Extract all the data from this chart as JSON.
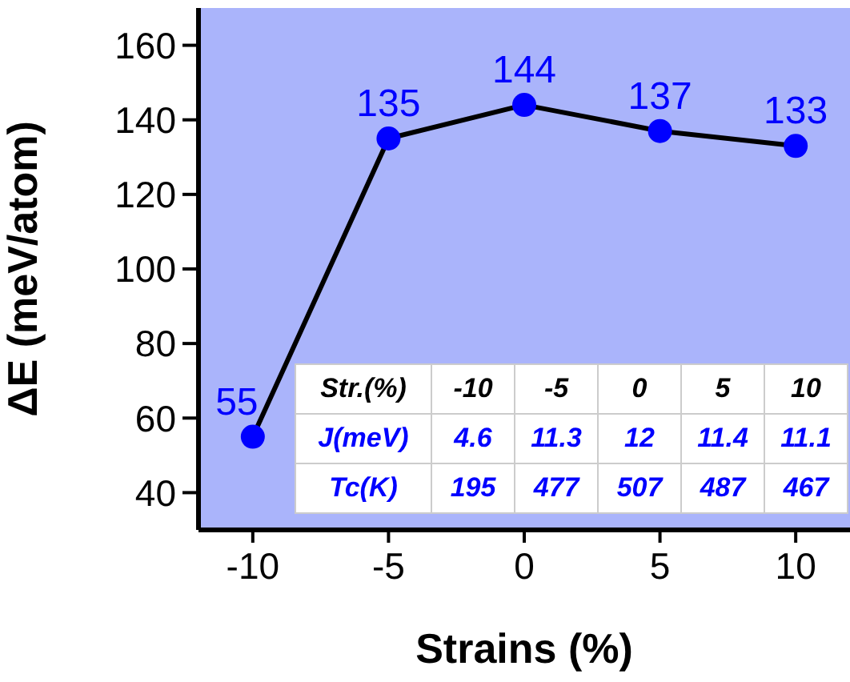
{
  "chart_data": {
    "type": "line",
    "xlabel": "Strains (%)",
    "ylabel": "ΔE (meV/atom)",
    "x": [
      -10,
      -5,
      0,
      5,
      10
    ],
    "series": [
      {
        "color": "#000000",
        "colors": [
          "#0000ff",
          "#0000ff",
          "#0000ff",
          "#0000ff",
          "#0000ff"
        ],
        "values": [
          55,
          135,
          144,
          137,
          133
        ]
      }
    ],
    "xlim": [
      -12,
      12
    ],
    "xticks": [
      -10,
      -5,
      0,
      5,
      10
    ],
    "ylim": [
      30,
      170
    ],
    "yticks": [
      40,
      60,
      80,
      100,
      120,
      140,
      160
    ],
    "grid": false,
    "marker": "circle",
    "line_style": "solid",
    "data_labels": true,
    "annotations": [
      "Str.(%)",
      "-10",
      "-5",
      "0",
      "5",
      "10",
      "J(meV)",
      "4.6",
      "11.3",
      "12",
      "11.4",
      "11.1",
      "Tc(K)",
      "195",
      "477",
      "507",
      "487",
      "467"
    ]
  }
}
